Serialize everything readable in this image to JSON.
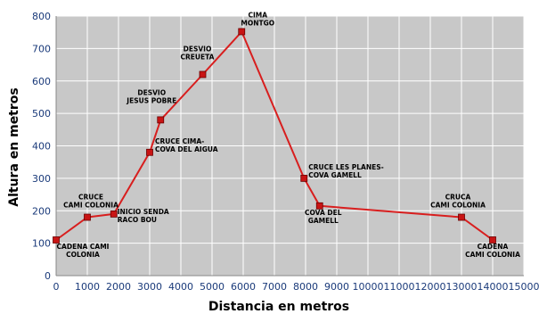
{
  "chart_data": {
    "type": "line",
    "xlabel": "Distancia en metros",
    "ylabel": "Altura en metros",
    "xlim": [
      0,
      15000
    ],
    "ylim": [
      0,
      800
    ],
    "xticks": [
      0,
      1000,
      2000,
      3000,
      4000,
      5000,
      6000,
      7000,
      8000,
      9000,
      10000,
      11000,
      12000,
      13000,
      14000,
      15000
    ],
    "yticks": [
      0,
      100,
      200,
      300,
      400,
      500,
      600,
      700,
      800
    ],
    "grid": true,
    "line_color": "#d81e1e",
    "marker_color": "#c81414",
    "plot_background": "#c8c8c8",
    "points": [
      {
        "x": 0,
        "y": 110,
        "label": [
          "CADENA CAMI",
          "COLONIA"
        ]
      },
      {
        "x": 1000,
        "y": 180,
        "label": [
          "CRUCE",
          "CAMI COLONIA"
        ]
      },
      {
        "x": 1850,
        "y": 190,
        "label": [
          "INICIO SENDA",
          "RACO BOU"
        ]
      },
      {
        "x": 3000,
        "y": 380,
        "label": [
          "CRUCE CIMA-",
          "COVA DEL AIGUA"
        ]
      },
      {
        "x": 3350,
        "y": 480,
        "label": [
          "DESVIO",
          "JESUS POBRE"
        ]
      },
      {
        "x": 4700,
        "y": 620,
        "label": [
          "DESVIO",
          "CREUETA"
        ]
      },
      {
        "x": 5950,
        "y": 752,
        "label": [
          "CIMA",
          "MONTGO"
        ]
      },
      {
        "x": 7950,
        "y": 300,
        "label": [
          "CRUCE LES PLANES-",
          "COVA GAMELL"
        ]
      },
      {
        "x": 8450,
        "y": 215,
        "label": [
          "COVA DEL",
          "GAMELL"
        ]
      },
      {
        "x": 13000,
        "y": 180,
        "label": [
          "CRUCA",
          "CAMI COLONIA"
        ]
      },
      {
        "x": 14000,
        "y": 110,
        "label": [
          "CADENA",
          "CAMI COLONIA"
        ]
      }
    ]
  }
}
